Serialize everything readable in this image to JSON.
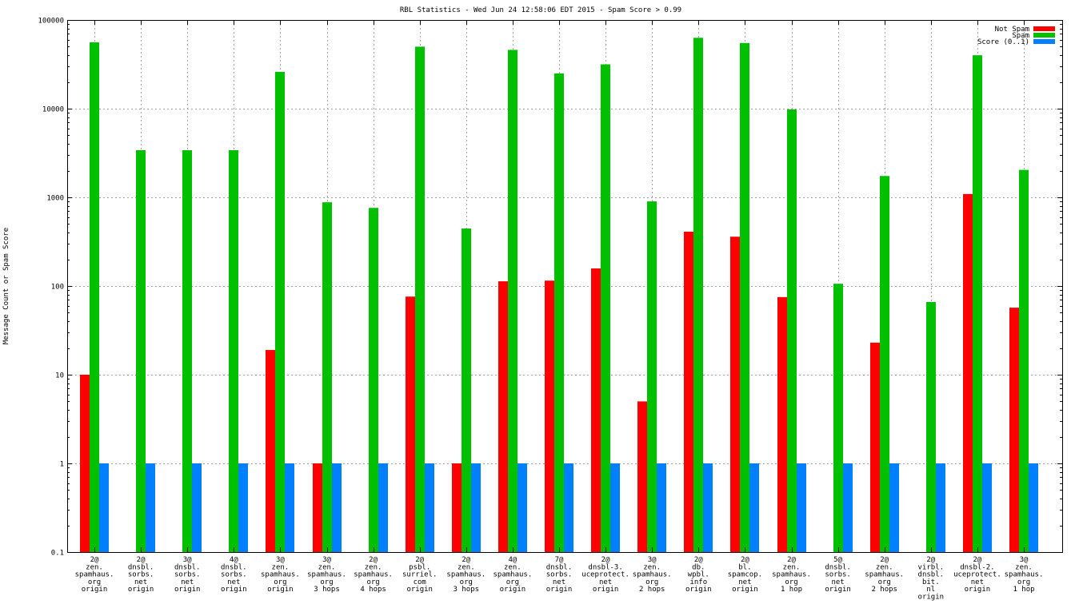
{
  "chart_data": {
    "type": "bar",
    "title": "RBL Statistics - Wed Jun 24 12:58:06 EDT 2015 - Spam Score > 0.99",
    "xlabel": "",
    "ylabel": "Message Count or Spam Score",
    "yscale": "log",
    "ylim": [
      0.1,
      100000
    ],
    "yticks": [
      "0.1",
      "1",
      "10",
      "100",
      "1000",
      "10000",
      "100000"
    ],
    "grid": true,
    "legend_position": "top-right",
    "categories": [
      [
        "2@",
        "zen.",
        "spamhaus.",
        "org",
        "origin"
      ],
      [
        "2@",
        "dnsbl.",
        "sorbs.",
        "net",
        "origin"
      ],
      [
        "3@",
        "dnsbl.",
        "sorbs.",
        "net",
        "origin"
      ],
      [
        "4@",
        "dnsbl.",
        "sorbs.",
        "net",
        "origin"
      ],
      [
        "3@",
        "zen.",
        "spamhaus.",
        "org",
        "origin"
      ],
      [
        "3@",
        "zen.",
        "spamhaus.",
        "org",
        "3 hops"
      ],
      [
        "2@",
        "zen.",
        "spamhaus.",
        "org",
        "4 hops"
      ],
      [
        "2@",
        "psbl.",
        "surriel.",
        "com",
        "origin"
      ],
      [
        "2@",
        "zen.",
        "spamhaus.",
        "org",
        "3 hops"
      ],
      [
        "4@",
        "zen.",
        "spamhaus.",
        "org",
        "origin"
      ],
      [
        "7@",
        "dnsbl.",
        "sorbs.",
        "net",
        "origin"
      ],
      [
        "2@",
        "dnsbl-3.",
        "uceprotect.",
        "net",
        "origin"
      ],
      [
        "3@",
        "zen.",
        "spamhaus.",
        "org",
        "2 hops"
      ],
      [
        "2@",
        "db.",
        "wpbl.",
        "info",
        "origin"
      ],
      [
        "2@",
        "bl.",
        "spamcop.",
        "net",
        "origin"
      ],
      [
        "2@",
        "zen.",
        "spamhaus.",
        "org",
        "1 hop"
      ],
      [
        "5@",
        "dnsbl.",
        "sorbs.",
        "net",
        "origin"
      ],
      [
        "2@",
        "zen.",
        "spamhaus.",
        "org",
        "2 hops"
      ],
      [
        "2@",
        "virbl.",
        "dnsbl.",
        "bit.",
        "nl",
        "origin"
      ],
      [
        "2@",
        "dnsbl-2.",
        "uceprotect.",
        "net",
        "origin"
      ],
      [
        "3@",
        "zen.",
        "spamhaus.",
        "org",
        "1 hop"
      ]
    ],
    "series": [
      {
        "name": "Not Spam",
        "color": "#ff0000",
        "values": [
          10,
          null,
          null,
          null,
          19,
          1,
          null,
          76,
          1,
          113,
          115,
          158,
          5,
          410,
          360,
          75,
          null,
          23,
          null,
          1090,
          57
        ]
      },
      {
        "name": "Spam",
        "color": "#00c000",
        "values": [
          56000,
          3400,
          3400,
          3400,
          26000,
          880,
          760,
          50000,
          445,
          46000,
          25000,
          31600,
          900,
          63000,
          55000,
          9800,
          106,
          1740,
          66,
          40000,
          2040
        ]
      },
      {
        "name": "Score (0..1)",
        "color": "#0080ff",
        "values": [
          1,
          1,
          1,
          1,
          1,
          1,
          1,
          1,
          1,
          1,
          1,
          1,
          1,
          1,
          1,
          1,
          1,
          1,
          1,
          1,
          1
        ]
      }
    ]
  }
}
